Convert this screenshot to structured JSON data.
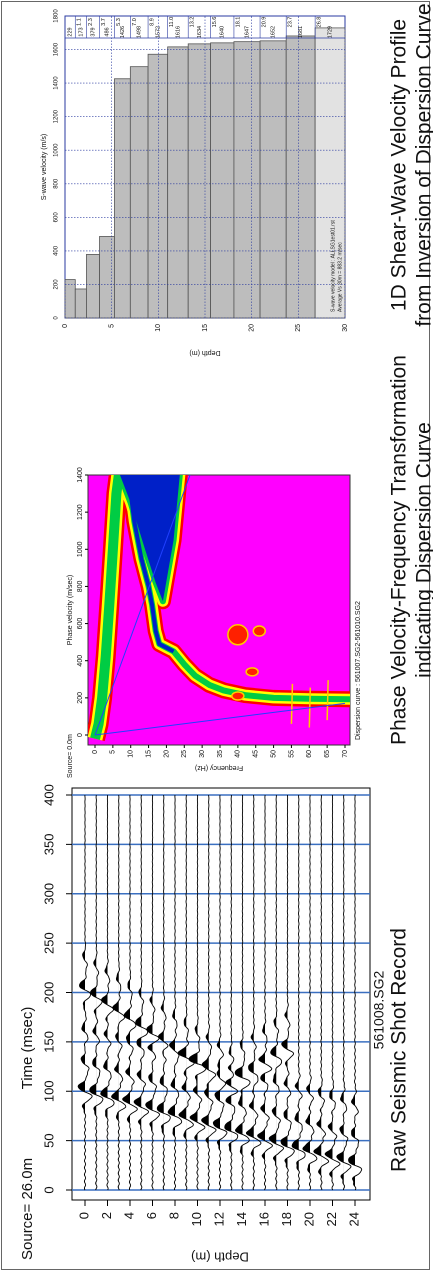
{
  "chart_data": [
    {
      "type": "wiggle",
      "title": "Raw Seismic Shot Record",
      "source": "Source= 26.0m",
      "record": "561008.SG2",
      "x_label": "Time (msec)",
      "y_label": "Depth (m)",
      "xlim": [
        0,
        400
      ],
      "xticks": [
        0,
        50,
        100,
        150,
        200,
        250,
        300,
        350,
        400
      ],
      "ylim": [
        0,
        24
      ],
      "yticks": [
        0,
        2,
        4,
        6,
        8,
        10,
        12,
        14,
        16,
        18,
        20,
        22,
        24
      ],
      "grid": true,
      "grid_color": "#3a6fc0"
    },
    {
      "type": "image",
      "title": "Phase Velocity-Frequency Transformation",
      "subtitle": "indicating Dispersion Curve",
      "source": "Source= 0.0m",
      "x_label": "Phase velocity (m/sec)",
      "y_label": "Frequency (Hz)",
      "annotation": "Dispersion curve : 561007.SG2-561010.SG2",
      "xlim": [
        0,
        1400
      ],
      "xticks": [
        0,
        200,
        400,
        600,
        800,
        1000,
        1200,
        1400
      ],
      "ylim": [
        0,
        70
      ],
      "yticks": [
        0,
        5,
        10,
        15,
        20,
        25,
        30,
        35,
        40,
        45,
        50,
        55,
        60,
        65,
        70
      ],
      "color": "#ff00ff"
    },
    {
      "type": "bar",
      "title": "1D Shear-Wave Velocity Profile",
      "subtitle": "from Inversion of Dispersion Curve",
      "x_label": "S-wave velocity (m/s)",
      "y_label": "Depth (m)",
      "annotations": [
        "S-wave velocity model : ALLSG1est01.rst",
        "Average Vs 30m = 883.2 m/sec"
      ],
      "values": [
        229,
        173,
        379,
        486,
        1426,
        1498,
        1572,
        1616,
        1634,
        1640,
        1647,
        1652,
        1681,
        1729
      ],
      "depths": [
        1.1,
        2.3,
        3.7,
        5.3,
        7.0,
        8.9,
        11.0,
        13.2,
        15.6,
        18.1,
        20.9,
        23.7,
        26.8
      ],
      "depth_labels": [
        "1.1",
        "2.3",
        "3.7",
        "5.3",
        "7.0",
        "8.9",
        "11.0",
        "13.2",
        "15.6",
        "18.1",
        "20.9",
        "23.7",
        "26.8"
      ],
      "xlim": [
        0,
        1800
      ],
      "xticks": [
        0,
        200,
        400,
        600,
        800,
        1000,
        1200,
        1400,
        1600,
        1800
      ],
      "ylim": [
        0,
        30
      ],
      "yticks": [
        0,
        5,
        10,
        15,
        20,
        25,
        30
      ],
      "color": "#bdbdbd",
      "grid": true
    }
  ]
}
